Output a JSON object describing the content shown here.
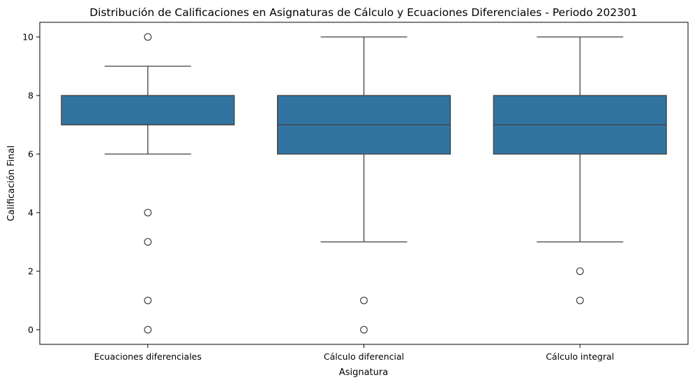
{
  "chart_data": {
    "type": "box",
    "title": "Distribución de Calificaciones en Asignaturas de Cálculo y Ecuaciones Diferenciales - Periodo 202301",
    "xlabel": "Asignatura",
    "ylabel": "Calificación Final",
    "ylim": [
      -0.5,
      10.5
    ],
    "yticks": [
      0,
      2,
      4,
      6,
      8,
      10
    ],
    "grid": false,
    "legend": "none",
    "box_color": "#3274a1",
    "line_color": "#3f3f3f",
    "categories": [
      "Ecuaciones diferenciales",
      "Cálculo diferencial",
      "Cálculo integral"
    ],
    "boxes": [
      {
        "category": "Ecuaciones diferenciales",
        "whisker_low": 6,
        "q1": 7,
        "median": 7,
        "q3": 8,
        "whisker_high": 9,
        "outliers": [
          10,
          4,
          3,
          1,
          0
        ]
      },
      {
        "category": "Cálculo diferencial",
        "whisker_low": 3,
        "q1": 6,
        "median": 7,
        "q3": 8,
        "whisker_high": 10,
        "outliers": [
          1,
          0
        ]
      },
      {
        "category": "Cálculo integral",
        "whisker_low": 3,
        "q1": 6,
        "median": 7,
        "q3": 8,
        "whisker_high": 10,
        "outliers": [
          2,
          1
        ]
      }
    ]
  }
}
